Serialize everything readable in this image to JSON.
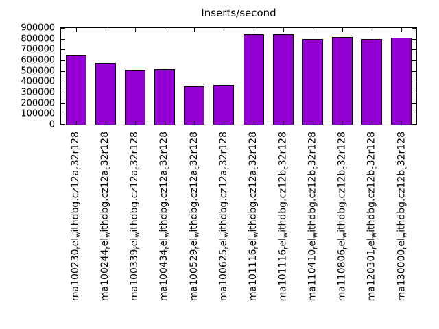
{
  "title": "Inserts/second",
  "chart_data": {
    "type": "bar",
    "title": "Inserts/second",
    "xlabel": "",
    "ylabel": "",
    "ylim": [
      0,
      900000
    ],
    "ytick_step": 100000,
    "yticks": [
      0,
      100000,
      200000,
      300000,
      400000,
      500000,
      600000,
      700000,
      800000,
      900000
    ],
    "grid": false,
    "legend_position": "none",
    "bar_color": "#9400d3",
    "bar_border_color": "#000000",
    "categories": [
      "ma100230_rel_withdbg.cz12a_c32r128",
      "ma100244_rel_withdbg.cz12a_c32r128",
      "ma100339_rel_withdbg.cz12a_c32r128",
      "ma100434_rel_withdbg.cz12a_c32r128",
      "ma100529_rel_withdbg.cz12a_c32r128",
      "ma100625_rel_withdbg.cz12a_c32r128",
      "ma101116_rel_withdbg.cz12a_c32r128",
      "ma101116_rel_withdbg.cz12b_c32r128",
      "ma110410_rel_withdbg.cz12b_c32r128",
      "ma110806_rel_withdbg.cz12b_c32r128",
      "ma120301_rel_withdbg.cz12b_c32r128",
      "ma130000_rel_withdbg.cz12b_c32r128"
    ],
    "values": [
      650000,
      575000,
      510000,
      515000,
      360000,
      370000,
      845000,
      840000,
      800000,
      820000,
      800000,
      810000
    ]
  }
}
